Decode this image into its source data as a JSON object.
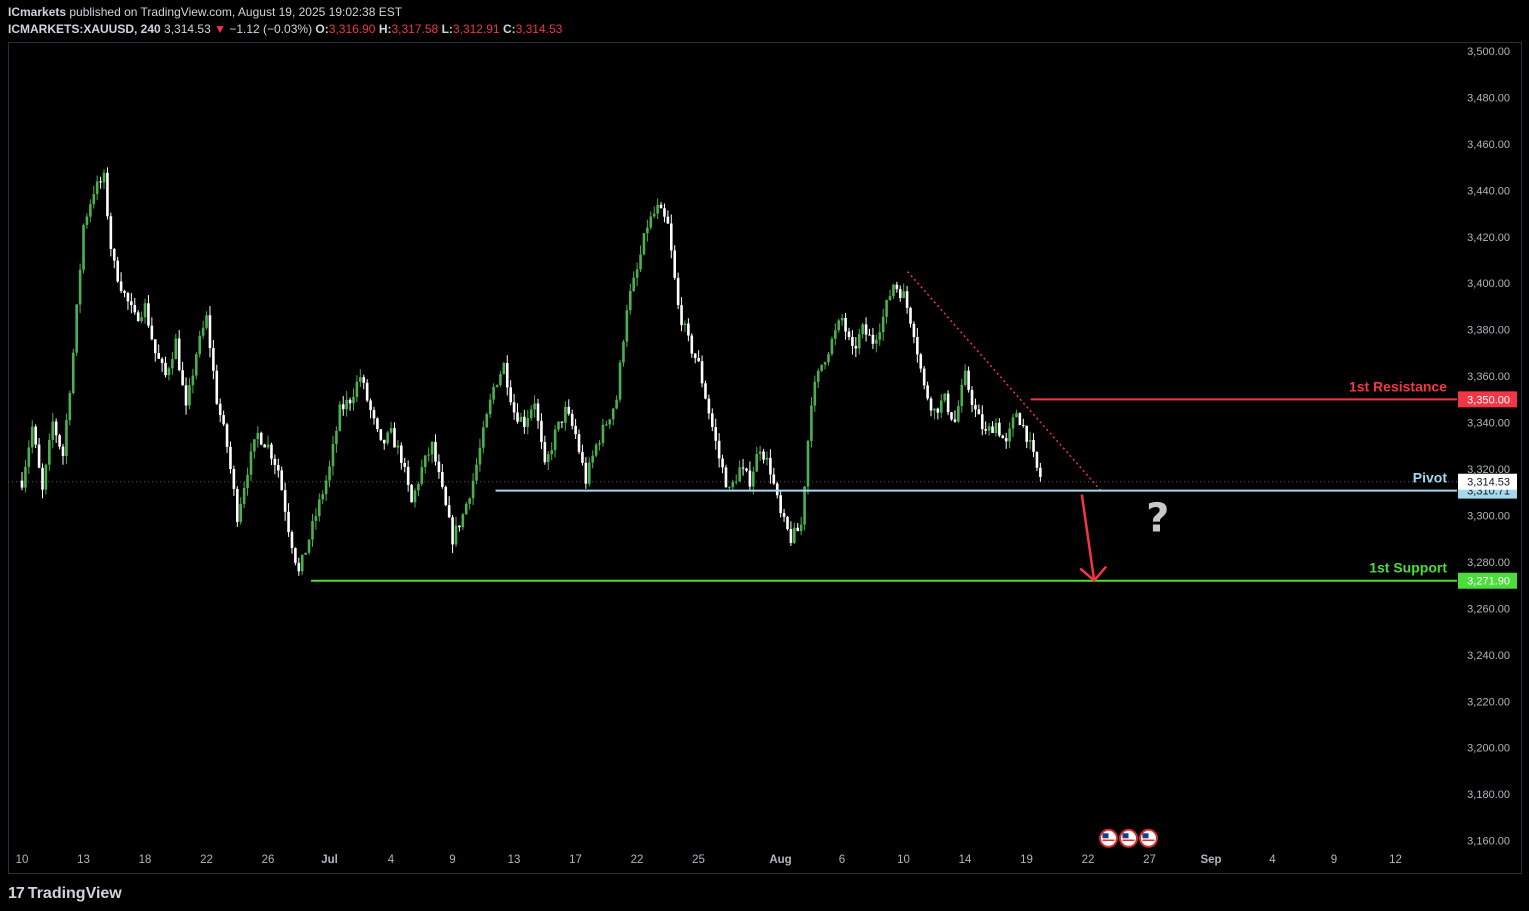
{
  "header": {
    "publisher": "ICmarkets",
    "publish_text": " published on TradingView.com, August 19, 2025 19:02:38 EST",
    "symbol": "ICMARKETS:XAUUSD, 240",
    "last_price": "3,314.53",
    "change_arrow": "▼",
    "change": "−1.12 (−0.03%)",
    "o_label": "O:",
    "o": "3,316.90",
    "h_label": "H:",
    "h": "3,317.58",
    "l_label": "L:",
    "l": "3,312.91",
    "c_label": "C:",
    "c": "3,314.53"
  },
  "footer": {
    "brand": "TradingView",
    "logo_glyph": "17"
  },
  "colors": {
    "background": "#000000",
    "up": "#4caf50",
    "down": "#ffffff",
    "resistance": "#f23645",
    "pivot": "#a4d8ec",
    "support": "#4cdc3c",
    "axis_text": "#b2b5be"
  },
  "chart_data": {
    "type": "candlestick",
    "symbol": "XAUUSD",
    "timeframe": "240",
    "ylim": [
      3150,
      3505
    ],
    "y_ticks": [
      3160,
      3180,
      3200,
      3220,
      3240,
      3260,
      3280,
      3300,
      3320,
      3340,
      3360,
      3380,
      3400,
      3420,
      3440,
      3460,
      3480,
      3500
    ],
    "y_tick_labels": [
      "3,160.00",
      "3,180.00",
      "3,200.00",
      "3,220.00",
      "3,240.00",
      "3,260.00",
      "3,280.00",
      "3,300.00",
      "3,320.00",
      "3,340.00",
      "3,360.00",
      "3,380.00",
      "3,400.00",
      "3,420.00",
      "3,440.00",
      "3,460.00",
      "3,480.00",
      "3,500.00"
    ],
    "x_tick_labels": [
      "10",
      "13",
      "18",
      "22",
      "26",
      "Jul",
      "4",
      "9",
      "13",
      "17",
      "22",
      "25",
      "Aug",
      "6",
      "10",
      "14",
      "19",
      "22",
      "27",
      "Sep",
      "4",
      "9",
      "12"
    ],
    "x_tick_positions": [
      0.0,
      3.0,
      6.0,
      9.0,
      12.0,
      15.0,
      18.0,
      21.0,
      24.0,
      27.0,
      30.0,
      33.0,
      37.0,
      40.0,
      43.0,
      46.0,
      49.0,
      52.0,
      55.0,
      58.0,
      61.0,
      64.0,
      67.0
    ],
    "x_tick_bold": [
      "Jul",
      "Aug",
      "Sep"
    ],
    "price_path": [
      [
        0,
        3315
      ],
      [
        0.5,
        3338
      ],
      [
        1,
        3310
      ],
      [
        1.5,
        3340
      ],
      [
        2,
        3326
      ],
      [
        2.5,
        3370
      ],
      [
        3,
        3425
      ],
      [
        3.5,
        3440
      ],
      [
        4,
        3445
      ],
      [
        4.4,
        3410
      ],
      [
        5,
        3395
      ],
      [
        5.5,
        3385
      ],
      [
        6,
        3390
      ],
      [
        6.5,
        3370
      ],
      [
        7,
        3360
      ],
      [
        7.5,
        3375
      ],
      [
        8,
        3345
      ],
      [
        8.5,
        3370
      ],
      [
        9,
        3385
      ],
      [
        9.5,
        3350
      ],
      [
        10,
        3330
      ],
      [
        10.5,
        3300
      ],
      [
        11,
        3320
      ],
      [
        11.5,
        3335
      ],
      [
        12,
        3330
      ],
      [
        12.5,
        3320
      ],
      [
        13,
        3295
      ],
      [
        13.5,
        3275
      ],
      [
        14,
        3290
      ],
      [
        14.5,
        3305
      ],
      [
        15,
        3320
      ],
      [
        15.5,
        3345
      ],
      [
        16,
        3350
      ],
      [
        16.5,
        3360
      ],
      [
        17,
        3345
      ],
      [
        17.5,
        3330
      ],
      [
        18,
        3335
      ],
      [
        18.5,
        3325
      ],
      [
        19,
        3305
      ],
      [
        19.5,
        3320
      ],
      [
        20,
        3330
      ],
      [
        20.5,
        3310
      ],
      [
        21,
        3290
      ],
      [
        21.5,
        3300
      ],
      [
        22,
        3315
      ],
      [
        22.5,
        3335
      ],
      [
        23,
        3355
      ],
      [
        23.5,
        3365
      ],
      [
        24,
        3345
      ],
      [
        24.5,
        3340
      ],
      [
        25,
        3350
      ],
      [
        25.5,
        3320
      ],
      [
        26,
        3335
      ],
      [
        26.5,
        3345
      ],
      [
        27,
        3335
      ],
      [
        27.5,
        3315
      ],
      [
        28,
        3330
      ],
      [
        28.5,
        3340
      ],
      [
        29,
        3350
      ],
      [
        29.5,
        3390
      ],
      [
        30,
        3405
      ],
      [
        30.5,
        3425
      ],
      [
        31,
        3432
      ],
      [
        31.5,
        3425
      ],
      [
        32,
        3390
      ],
      [
        32.5,
        3375
      ],
      [
        33,
        3365
      ],
      [
        33.5,
        3345
      ],
      [
        34,
        3325
      ],
      [
        34.5,
        3310
      ],
      [
        35,
        3320
      ],
      [
        35.5,
        3315
      ],
      [
        36,
        3330
      ],
      [
        36.5,
        3320
      ],
      [
        37,
        3300
      ],
      [
        37.5,
        3290
      ],
      [
        38,
        3295
      ],
      [
        38.5,
        3350
      ],
      [
        39,
        3365
      ],
      [
        39.5,
        3375
      ],
      [
        40,
        3385
      ],
      [
        40.5,
        3370
      ],
      [
        41,
        3380
      ],
      [
        41.5,
        3375
      ],
      [
        42,
        3385
      ],
      [
        42.5,
        3400
      ],
      [
        43,
        3395
      ],
      [
        43.5,
        3380
      ],
      [
        44,
        3355
      ],
      [
        44.5,
        3345
      ],
      [
        45,
        3350
      ],
      [
        45.5,
        3340
      ],
      [
        46,
        3360
      ],
      [
        46.5,
        3345
      ],
      [
        47,
        3335
      ],
      [
        47.5,
        3340
      ],
      [
        48,
        3330
      ],
      [
        48.5,
        3345
      ],
      [
        49,
        3335
      ],
      [
        49.5,
        3320
      ],
      [
        49.8,
        3314.53
      ]
    ],
    "last_price": 3314.53,
    "last_price_label": "3,314.53",
    "levels": [
      {
        "name": "1st Resistance",
        "value": 3350.0,
        "value_label": "3,350.00",
        "color": "#f23645",
        "x_start": 49.2
      },
      {
        "name": "Pivot",
        "value": 3310.71,
        "value_label": "3,310.71",
        "color": "#a4d8ec",
        "x_start": 23.1
      },
      {
        "name": "1st Support",
        "value": 3271.9,
        "value_label": "3,271.90",
        "color": "#4cdc3c",
        "x_start": 14.1
      }
    ],
    "trendline": {
      "from": [
        43.2,
        3405
      ],
      "to": [
        52.7,
        3310
      ],
      "style": "dotted",
      "color": "#f23645"
    },
    "arrow": {
      "from": [
        51.7,
        3309
      ],
      "to": [
        52.3,
        3272
      ],
      "color": "#f23645"
    },
    "question_mark": {
      "text": "?",
      "at": [
        55.4,
        3293
      ]
    },
    "event_markers": {
      "at": [
        53.0,
        3161
      ],
      "count": 3
    }
  }
}
